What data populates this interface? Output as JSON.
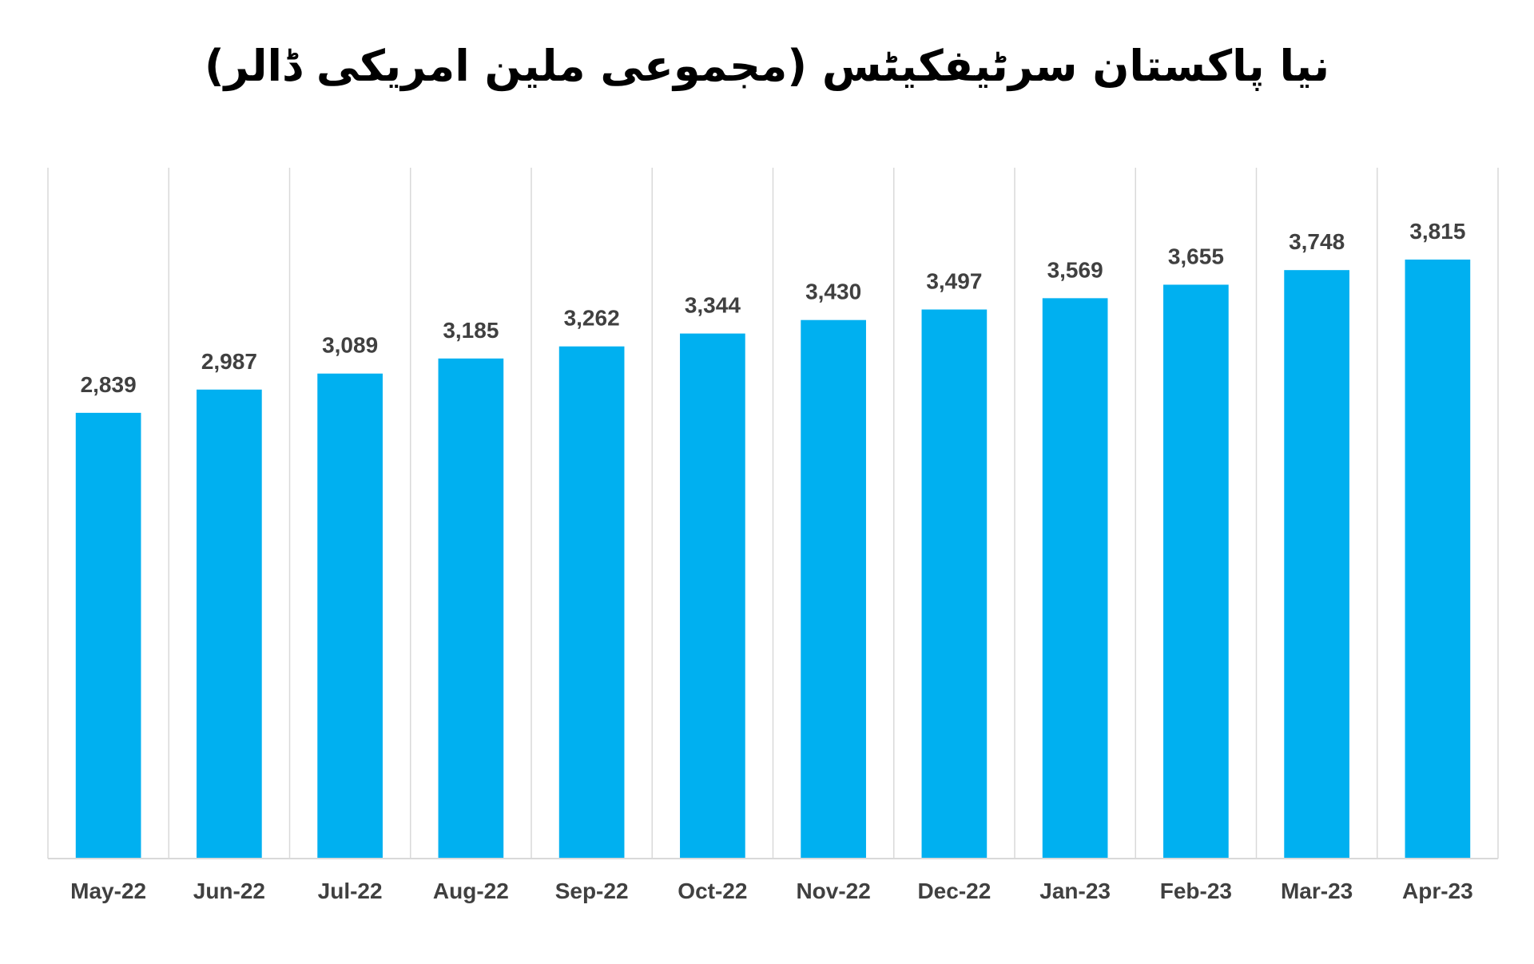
{
  "chart_data": {
    "type": "bar",
    "title": "نیا پاکستان سرٹیفکیٹس (مجموعی ملین امریکی ڈالر)",
    "categories": [
      "May-22",
      "Jun-22",
      "Jul-22",
      "Aug-22",
      "Sep-22",
      "Oct-22",
      "Nov-22",
      "Dec-22",
      "Jan-23",
      "Feb-23",
      "Mar-23",
      "Apr-23"
    ],
    "values": [
      2839,
      2987,
      3089,
      3185,
      3262,
      3344,
      3430,
      3497,
      3569,
      3655,
      3748,
      3815
    ],
    "value_labels": [
      "2,839",
      "2,987",
      "3,089",
      "3,185",
      "3,262",
      "3,344",
      "3,430",
      "3,497",
      "3,569",
      "3,655",
      "3,748",
      "3,815"
    ],
    "xlabel": "",
    "ylabel": "",
    "ylim": [
      0,
      4400
    ],
    "bar_color": "#00B0F0",
    "grid": "vertical category separators",
    "legend": "none"
  }
}
